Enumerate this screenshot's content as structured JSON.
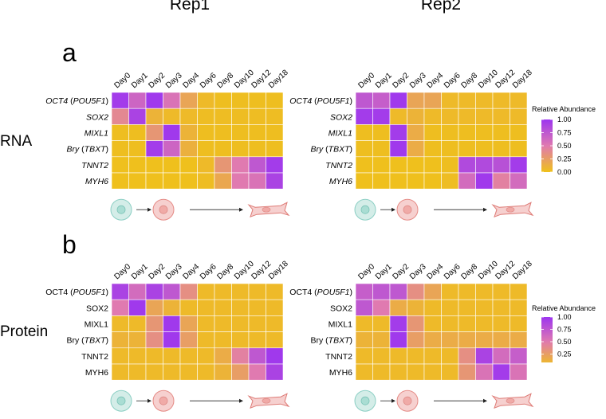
{
  "figure": {
    "rep_titles": [
      "Rep1",
      "Rep2"
    ],
    "panel_letters": [
      "a",
      "b"
    ],
    "row_labels": [
      "RNA",
      "Protein"
    ]
  },
  "chart_data": [
    {
      "type": "heatmap",
      "title": "Rep1",
      "panel": "a",
      "modality": "RNA",
      "x": [
        "Day0",
        "Day1",
        "Day2",
        "Day3",
        "Day4",
        "Day6",
        "Day8",
        "Day10",
        "Day12",
        "Day18"
      ],
      "y": [
        {
          "pre": "",
          "gene": "OCT4",
          "paren": "POU5F1"
        },
        {
          "pre": "",
          "gene": "SOX2",
          "paren": ""
        },
        {
          "pre": "",
          "gene": "MIXL1",
          "paren": ""
        },
        {
          "pre": "",
          "gene": "Bry",
          "paren": "TBXT"
        },
        {
          "pre": "",
          "gene": "TNNT2",
          "paren": ""
        },
        {
          "pre": "",
          "gene": "MYH6",
          "paren": ""
        }
      ],
      "values": [
        [
          0.95,
          0.65,
          0.97,
          0.55,
          0.2,
          0.05,
          0.02,
          0.02,
          0.02,
          0.02
        ],
        [
          0.4,
          0.9,
          0.1,
          0.05,
          0.05,
          0.03,
          0.03,
          0.03,
          0.03,
          0.03
        ],
        [
          0.02,
          0.02,
          0.3,
          0.97,
          0.1,
          0.02,
          0.02,
          0.02,
          0.02,
          0.02
        ],
        [
          0.02,
          0.02,
          0.95,
          0.65,
          0.12,
          0.02,
          0.02,
          0.02,
          0.02,
          0.02
        ],
        [
          0.01,
          0.01,
          0.01,
          0.01,
          0.01,
          0.05,
          0.3,
          0.5,
          0.75,
          0.95
        ],
        [
          0.01,
          0.01,
          0.01,
          0.01,
          0.01,
          0.03,
          0.18,
          0.5,
          0.55,
          0.9
        ]
      ]
    },
    {
      "type": "heatmap",
      "title": "Rep2",
      "panel": "a",
      "modality": "RNA",
      "x": [
        "Day0",
        "Day1",
        "Day2",
        "Day3",
        "Day4",
        "Day6",
        "Day8",
        "Day10",
        "Day12",
        "Day18"
      ],
      "y": [
        {
          "pre": "",
          "gene": "OCT4",
          "paren": "POU5F1"
        },
        {
          "pre": "",
          "gene": "SOX2",
          "paren": ""
        },
        {
          "pre": "",
          "gene": "MIXL1",
          "paren": ""
        },
        {
          "pre": "",
          "gene": "Bry",
          "paren": "TBXT"
        },
        {
          "pre": "",
          "gene": "TNNT2",
          "paren": ""
        },
        {
          "pre": "",
          "gene": "MYH6",
          "paren": ""
        }
      ],
      "values": [
        [
          0.75,
          0.7,
          0.97,
          0.2,
          0.2,
          0.05,
          0.05,
          0.05,
          0.05,
          0.05
        ],
        [
          0.95,
          0.95,
          0.05,
          0.1,
          0.05,
          0.05,
          0.05,
          0.05,
          0.05,
          0.05
        ],
        [
          0.02,
          0.02,
          0.95,
          0.15,
          0.02,
          0.02,
          0.02,
          0.02,
          0.02,
          0.02
        ],
        [
          0.02,
          0.02,
          0.97,
          0.15,
          0.02,
          0.02,
          0.02,
          0.02,
          0.02,
          0.02
        ],
        [
          0.01,
          0.01,
          0.01,
          0.01,
          0.01,
          0.02,
          0.85,
          0.85,
          0.8,
          0.95
        ],
        [
          0.01,
          0.01,
          0.01,
          0.01,
          0.01,
          0.03,
          0.6,
          0.97,
          0.45,
          0.6
        ]
      ]
    },
    {
      "type": "heatmap",
      "title": "Rep1",
      "panel": "b",
      "modality": "Protein",
      "x": [
        "Day0",
        "Day1",
        "Day2",
        "Day3",
        "Day4",
        "Day6",
        "Day8",
        "Day10",
        "Day12",
        "Day18"
      ],
      "y": [
        {
          "pre": "OCT4 (",
          "gene": "POU5F1",
          "paren": "",
          "post": ")"
        },
        {
          "pre": "SOX2",
          "gene": "",
          "paren": "",
          "post": ""
        },
        {
          "pre": "MIXL1",
          "gene": "",
          "paren": "",
          "post": ""
        },
        {
          "pre": "Bry (",
          "gene": "TBXT",
          "paren": "",
          "post": ")"
        },
        {
          "pre": "TNNT2",
          "gene": "",
          "paren": "",
          "post": ""
        },
        {
          "pre": "MYH6",
          "gene": "",
          "paren": "",
          "post": ""
        }
      ],
      "values": [
        [
          0.9,
          0.6,
          0.9,
          0.75,
          0.35,
          0.05,
          0.05,
          0.05,
          0.05,
          0.05
        ],
        [
          0.5,
          0.97,
          0.2,
          0.1,
          0.05,
          0.05,
          0.05,
          0.05,
          0.05,
          0.05
        ],
        [
          0.05,
          0.05,
          0.3,
          0.97,
          0.2,
          0.05,
          0.05,
          0.05,
          0.05,
          0.05
        ],
        [
          0.1,
          0.1,
          0.35,
          0.97,
          0.25,
          0.05,
          0.05,
          0.05,
          0.05,
          0.05
        ],
        [
          0.05,
          0.05,
          0.05,
          0.05,
          0.05,
          0.05,
          0.15,
          0.45,
          0.75,
          0.97
        ],
        [
          0.05,
          0.05,
          0.05,
          0.05,
          0.05,
          0.05,
          0.1,
          0.25,
          0.5,
          0.9
        ]
      ]
    },
    {
      "type": "heatmap",
      "title": "Rep2",
      "panel": "b",
      "modality": "Protein",
      "x": [
        "Day0",
        "Day1",
        "Day2",
        "Day3",
        "Day4",
        "Day6",
        "Day8",
        "Day10",
        "Day12",
        "Day18"
      ],
      "y": [
        {
          "pre": "OCT4 (",
          "gene": "POU5F1",
          "paren": "",
          "post": ")"
        },
        {
          "pre": "SOX2",
          "gene": "",
          "paren": "",
          "post": ""
        },
        {
          "pre": "MIXL1",
          "gene": "",
          "paren": "",
          "post": ""
        },
        {
          "pre": "Bry (",
          "gene": "TBXT",
          "paren": "",
          "post": ")"
        },
        {
          "pre": "TNNT2",
          "gene": "",
          "paren": "",
          "post": ""
        },
        {
          "pre": "MYH6",
          "gene": "",
          "paren": "",
          "post": ""
        }
      ],
      "values": [
        [
          0.7,
          0.75,
          0.75,
          0.35,
          0.2,
          0.05,
          0.05,
          0.05,
          0.05,
          0.05
        ],
        [
          0.75,
          0.5,
          0.15,
          0.1,
          0.05,
          0.05,
          0.05,
          0.05,
          0.05,
          0.05
        ],
        [
          0.05,
          0.05,
          0.95,
          0.3,
          0.05,
          0.05,
          0.05,
          0.05,
          0.05,
          0.05
        ],
        [
          0.1,
          0.1,
          0.97,
          0.25,
          0.15,
          0.15,
          0.15,
          0.15,
          0.15,
          0.15
        ],
        [
          0.05,
          0.05,
          0.05,
          0.05,
          0.05,
          0.05,
          0.35,
          0.9,
          0.6,
          0.7
        ],
        [
          0.05,
          0.05,
          0.05,
          0.05,
          0.05,
          0.05,
          0.3,
          0.55,
          0.95,
          0.55
        ]
      ]
    }
  ],
  "legends": [
    {
      "title": "Relative Abundance",
      "ticks": [
        "1.00",
        "0.75",
        "0.50",
        "0.25",
        "0.00"
      ],
      "tick_values": [
        1.0,
        0.75,
        0.5,
        0.25,
        0.0
      ],
      "range": [
        0,
        1
      ]
    },
    {
      "title": "Relative Abundance",
      "ticks": [
        "1.00",
        "0.75",
        "0.50",
        "0.25"
      ],
      "tick_values": [
        1.0,
        0.75,
        0.5,
        0.25
      ],
      "range": [
        0.08,
        1
      ]
    }
  ],
  "colors": {
    "low": "#efc11a",
    "mid": "#e07ab0",
    "high": "#9c35f0",
    "cell_stem_fill": "#d4ede8",
    "cell_stem_stroke": "#8ccfc4",
    "cell_meso_fill": "#f6d0cf",
    "cell_meso_stroke": "#e58b86",
    "cell_cardio_fill": "#f6d0cf",
    "cell_cardio_stroke": "#de7b76"
  }
}
